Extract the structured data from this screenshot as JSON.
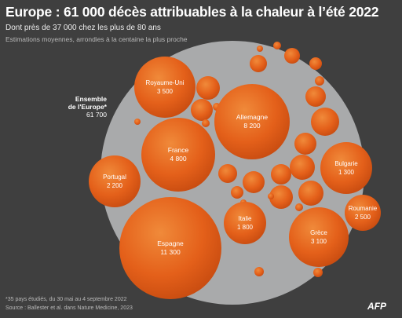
{
  "header": {
    "title": "Europe : 61 000 décès attribuables à la chaleur à l’été 2022",
    "subtitle": "Dont près de 37 000 chez les plus de 80 ans",
    "note": "Estimations moyennes, arrondies à la centaine la plus proche"
  },
  "footer": {
    "footnote": "*35 pays étudiés, du 30 mai au 4 septembre 2022",
    "source": "Source : Ballester et al. dans Nature Medicine, 2023",
    "logo": "AFP"
  },
  "colors": {
    "background": "#3f3f3f",
    "europe_fill": "#a9aaab",
    "bubble": "#e4601a"
  },
  "chart_data": {
    "type": "bubble",
    "total": {
      "label_lines": [
        "Ensemble",
        "de l'Europe*"
      ],
      "value": 61700,
      "value_label": "61 700"
    },
    "labeled": [
      {
        "name": "Allemagne",
        "value": 8200,
        "value_label": "8 200"
      },
      {
        "name": "Espagne",
        "value": 11300,
        "value_label": "11 300"
      },
      {
        "name": "France",
        "value": 4800,
        "value_label": "4 800"
      },
      {
        "name": "Royaume-Uni",
        "value": 3500,
        "value_label": "3 500"
      },
      {
        "name": "Portugal",
        "value": 2200,
        "value_label": "2 200"
      },
      {
        "name": "Italie",
        "value": 1800,
        "value_label": "1 800"
      },
      {
        "name": "Grèce",
        "value": 3100,
        "value_label": "3 100"
      },
      {
        "name": "Bulgarie",
        "value": 1300,
        "value_label": "1 300"
      },
      {
        "name": "Roumanie",
        "value": 2500,
        "value_label": "2 500"
      }
    ],
    "unlabeled_count": 26
  }
}
